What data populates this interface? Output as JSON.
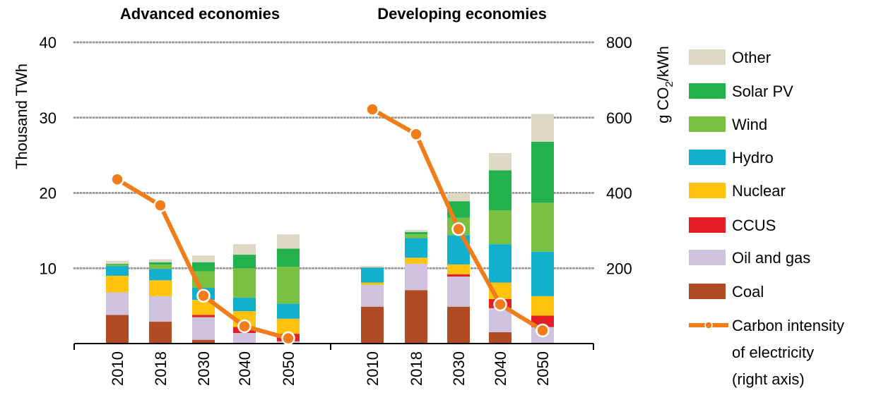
{
  "chart_data": {
    "type": "stacked-bar-with-line",
    "panels": [
      {
        "title": "Advanced economies",
        "categories": [
          "2010",
          "2018",
          "2030",
          "2040",
          "2050"
        ],
        "stacks": {
          "Coal": [
            3.8,
            2.9,
            0.5,
            0.0,
            0.0
          ],
          "Oil and gas": [
            3.0,
            3.4,
            3.0,
            1.4,
            0.3
          ],
          "CCUS": [
            0.0,
            0.0,
            0.3,
            0.8,
            1.0
          ],
          "Nuclear": [
            2.2,
            2.1,
            2.0,
            2.1,
            2.0
          ],
          "Hydro": [
            1.3,
            1.5,
            1.6,
            1.8,
            2.0
          ],
          "Wind": [
            0.2,
            0.6,
            2.2,
            3.9,
            4.9
          ],
          "Solar PV": [
            0.1,
            0.3,
            1.2,
            1.8,
            2.4
          ],
          "Other": [
            0.4,
            0.4,
            0.9,
            1.4,
            1.9
          ]
        },
        "carbon_intensity": [
          436,
          367,
          127,
          46,
          14
        ]
      },
      {
        "title": "Developing economies",
        "categories": [
          "2010",
          "2018",
          "2030",
          "2040",
          "2050"
        ],
        "stacks": {
          "Coal": [
            4.9,
            7.1,
            4.9,
            1.5,
            0.0
          ],
          "Oil and gas": [
            2.9,
            3.5,
            4.0,
            3.2,
            2.2
          ],
          "CCUS": [
            0.0,
            0.0,
            0.3,
            1.2,
            1.5
          ],
          "Nuclear": [
            0.3,
            0.8,
            1.3,
            2.2,
            2.6
          ],
          "Hydro": [
            2.0,
            2.6,
            3.9,
            5.1,
            5.9
          ],
          "Wind": [
            0.0,
            0.5,
            2.3,
            4.5,
            6.5
          ],
          "Solar PV": [
            0.0,
            0.3,
            2.2,
            5.3,
            8.1
          ],
          "Other": [
            0.2,
            0.3,
            1.1,
            2.3,
            3.7
          ]
        },
        "carbon_intensity": [
          622,
          556,
          304,
          104,
          35
        ]
      }
    ],
    "series_order": [
      "Coal",
      "Oil and gas",
      "CCUS",
      "Nuclear",
      "Hydro",
      "Wind",
      "Solar PV",
      "Other"
    ],
    "legend": [
      {
        "name": "Other",
        "color": "#ddd9c4",
        "kind": "box"
      },
      {
        "name": "Solar PV",
        "color": "#22b14c",
        "kind": "box"
      },
      {
        "name": "Wind",
        "color": "#7ac143",
        "kind": "box"
      },
      {
        "name": "Hydro",
        "color": "#12b0cc",
        "kind": "box"
      },
      {
        "name": "Nuclear",
        "color": "#ffc20e",
        "kind": "box"
      },
      {
        "name": "CCUS",
        "color": "#e31e24",
        "kind": "box"
      },
      {
        "name": "Oil and gas",
        "color": "#cfc3df",
        "kind": "box"
      },
      {
        "name": "Coal",
        "color": "#b04b23",
        "kind": "box"
      },
      {
        "name": "Carbon intensity",
        "lines": [
          "Carbon intensity",
          "of electricity",
          "(right axis)"
        ],
        "color": "#f07d1a",
        "kind": "line"
      }
    ],
    "left_axis": {
      "label": "Thousand  TWh",
      "ylim": [
        0,
        40
      ],
      "ticks": [
        "10",
        "20",
        "30",
        "40"
      ]
    },
    "right_axis": {
      "label_parts": [
        "g CO",
        "2",
        "/kWh"
      ],
      "ylim": [
        0,
        800
      ],
      "ticks": [
        "200",
        "400",
        "600",
        "800"
      ]
    },
    "grid": true,
    "colors": {
      "line": "#f07d1a",
      "marker_fill": "#f07d1a",
      "marker_stroke": "#ffffff",
      "grid": "#9a9a9a"
    }
  }
}
